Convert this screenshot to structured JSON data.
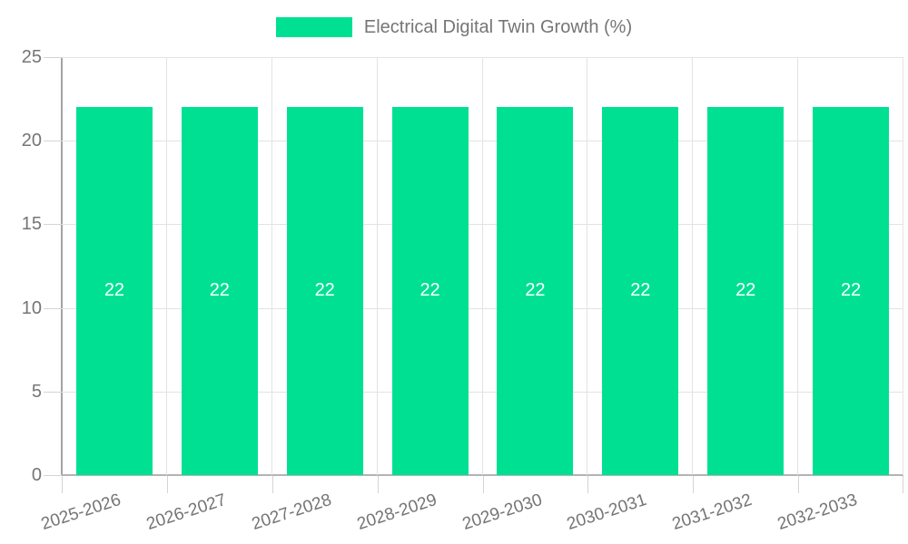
{
  "legend": {
    "label": "Electrical Digital Twin Growth (%)"
  },
  "colors": {
    "bar": "#00E093",
    "bar_value_text": "#ffffff",
    "grid_line": "#e3e3e3",
    "tick_mark": "#d4d4d4",
    "y_axis_line": "#a3a3a3",
    "x_axis_line": "#b3b3b3",
    "label_text": "#757575",
    "background": "#ffffff"
  },
  "chart_data": {
    "type": "bar",
    "title": "Electrical Digital Twin Growth (%)",
    "categories": [
      "2025-2026",
      "2026-2027",
      "2027-2028",
      "2028-2029",
      "2029-2030",
      "2030-2031",
      "2031-2032",
      "2032-2033"
    ],
    "series": [
      {
        "name": "Electrical Digital Twin Growth (%)",
        "values": [
          22,
          22,
          22,
          22,
          22,
          22,
          22,
          22
        ]
      }
    ],
    "values": [
      22,
      22,
      22,
      22,
      22,
      22,
      22,
      22
    ],
    "value_labels": [
      "22",
      "22",
      "22",
      "22",
      "22",
      "22",
      "22",
      "22"
    ],
    "xlabel": "",
    "ylabel": "",
    "ylim": [
      0,
      25
    ],
    "yticks": [
      0,
      5,
      10,
      15,
      20,
      25
    ],
    "grid": "horizontal and vertical light gray gridlines",
    "legend_position": "top-center",
    "value_label_style": "white text centered inside each bar",
    "x_tick_rotation_deg": -18
  }
}
